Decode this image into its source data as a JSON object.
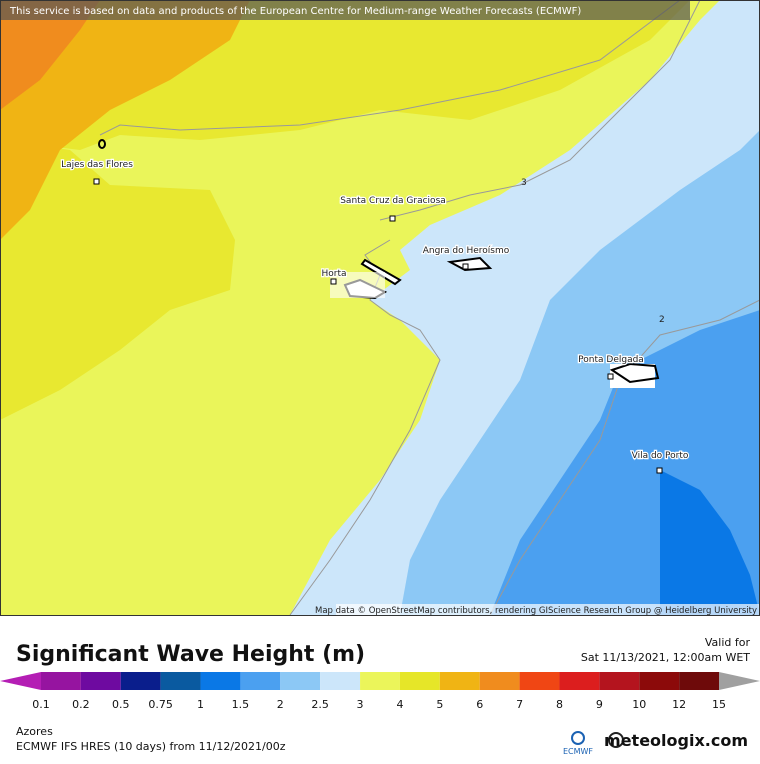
{
  "map": {
    "attribution": "This service is based on data and products of the European Centre for Medium-range Weather Forecasts (ECMWF)",
    "credit": "Map data © OpenStreetMap contributors, rendering GIScience Research Group @ Heidelberg University",
    "places": [
      "Lajes das Flores",
      "Santa Cruz da Graciosa",
      "Angra do Heroísmo",
      "Horta",
      "Ponta Delgada",
      "Vila do Porto"
    ],
    "contours": [
      "3",
      "2"
    ]
  },
  "legend": {
    "title": "Significant Wave Height (m)",
    "valid_label": "Valid for",
    "valid_time": "Sat 11/13/2021, 12:00am WET",
    "labels": [
      "0.1",
      "0.2",
      "0.5",
      "0.75",
      "1",
      "1.5",
      "2",
      "2.5",
      "3",
      "4",
      "5",
      "6",
      "7",
      "8",
      "9",
      "10",
      "12",
      "15"
    ]
  },
  "footer": {
    "region": "Azores",
    "model": "ECMWF IFS HRES (10 days) from 11/12/2021/00z",
    "ecmwf": "ECMWF",
    "brand": "meteologix.com"
  }
}
